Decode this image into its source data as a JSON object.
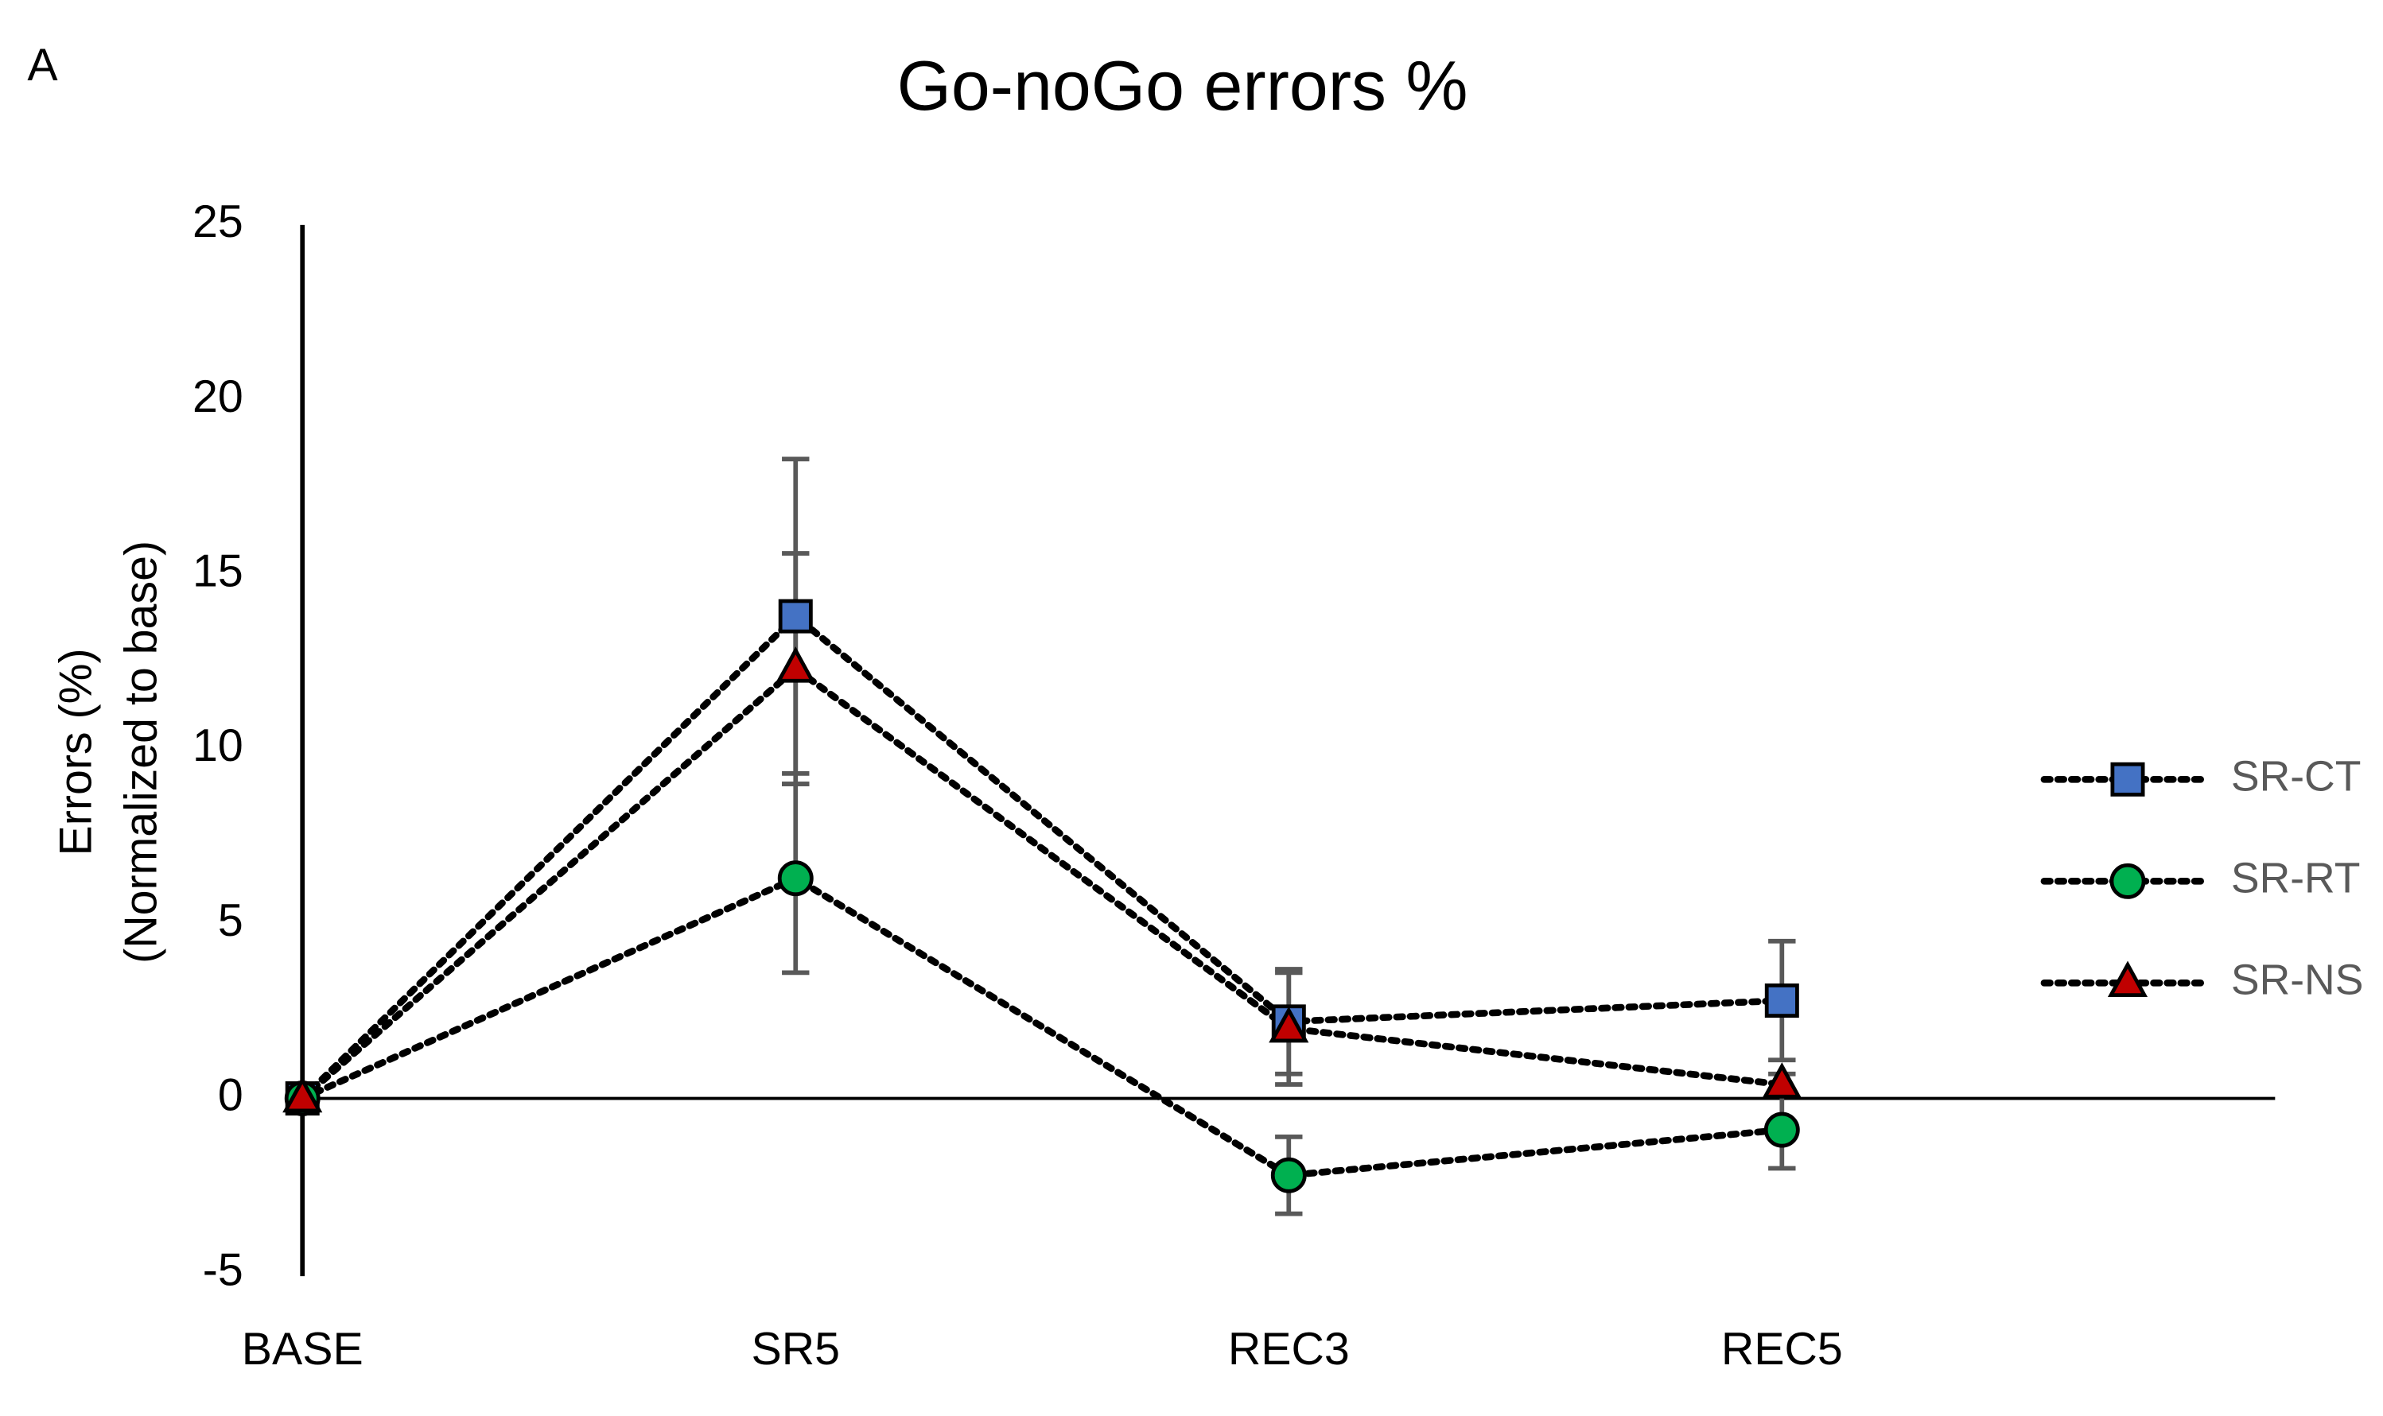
{
  "panel_label": "A",
  "chart_data": {
    "type": "line",
    "title": "Go-noGo errors %",
    "ylabel": [
      "Errors (%)",
      "(Normalized to base)"
    ],
    "categories": [
      "BASE",
      "SR5",
      "REC3",
      "REC5"
    ],
    "ylim": [
      -5,
      25
    ],
    "yticks": [
      -5,
      0,
      5,
      10,
      15,
      20,
      25
    ],
    "legend": "right",
    "series": [
      {
        "name": "SR-CT",
        "color": "#4472c4",
        "marker": "square",
        "values": [
          0,
          13.8,
          2.2,
          2.8
        ],
        "errors": [
          0,
          4.5,
          1.5,
          1.7
        ]
      },
      {
        "name": "SR-RT",
        "color": "#00b050",
        "marker": "circle",
        "values": [
          0,
          6.3,
          -2.2,
          -0.9
        ],
        "errors": [
          0,
          2.7,
          1.1,
          1.1
        ]
      },
      {
        "name": "SR-NS",
        "color": "#c00000",
        "marker": "triangle",
        "values": [
          0,
          12.3,
          2.0,
          0.4
        ],
        "errors": [
          0,
          3.3,
          1.6,
          0.3
        ]
      }
    ]
  }
}
